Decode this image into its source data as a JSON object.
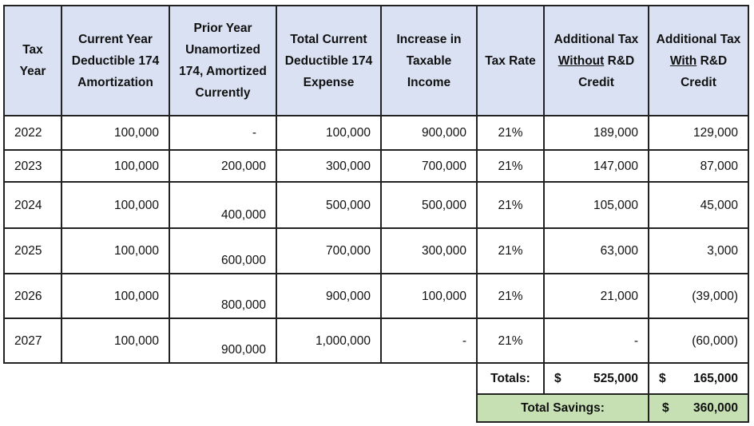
{
  "headers": [
    {
      "text": "Tax Year"
    },
    {
      "text": "Current Year Deductible 174 Amortization"
    },
    {
      "text": "Prior Year Unamortized 174, Amortized Currently"
    },
    {
      "text": "Total Current Deductible 174 Expense"
    },
    {
      "text": "Increase in Taxable Income"
    },
    {
      "text": "Tax Rate"
    },
    {
      "pre": "Additional Tax ",
      "u": "Without",
      "post": " R&D Credit"
    },
    {
      "pre": "Additional Tax ",
      "u": "With",
      "post": " R&D Credit"
    }
  ],
  "rows": [
    [
      "2022",
      "100,000",
      "-",
      "100,000",
      "900,000",
      "21%",
      "189,000",
      "129,000"
    ],
    [
      "2023",
      "100,000",
      "200,000",
      "300,000",
      "700,000",
      "21%",
      "147,000",
      "87,000"
    ],
    [
      "2024",
      "100,000",
      "400,000",
      "500,000",
      "500,000",
      "21%",
      "105,000",
      "45,000"
    ],
    [
      "2025",
      "100,000",
      "600,000",
      "700,000",
      "300,000",
      "21%",
      "63,000",
      "3,000"
    ],
    [
      "2026",
      "100,000",
      "800,000",
      "900,000",
      "100,000",
      "21%",
      "21,000",
      "(39,000)"
    ],
    [
      "2027",
      "100,000",
      "900,000",
      "1,000,000",
      "-",
      "21%",
      "-",
      "(60,000)"
    ]
  ],
  "totals": {
    "label": "Totals:",
    "currency": "$",
    "without": "525,000",
    "with": "165,000"
  },
  "savings": {
    "label": "Total Savings:",
    "currency": "$",
    "value": "360,000"
  },
  "colors": {
    "header_bg": "#d9e1f2",
    "savings_bg": "#c6e0b4"
  }
}
